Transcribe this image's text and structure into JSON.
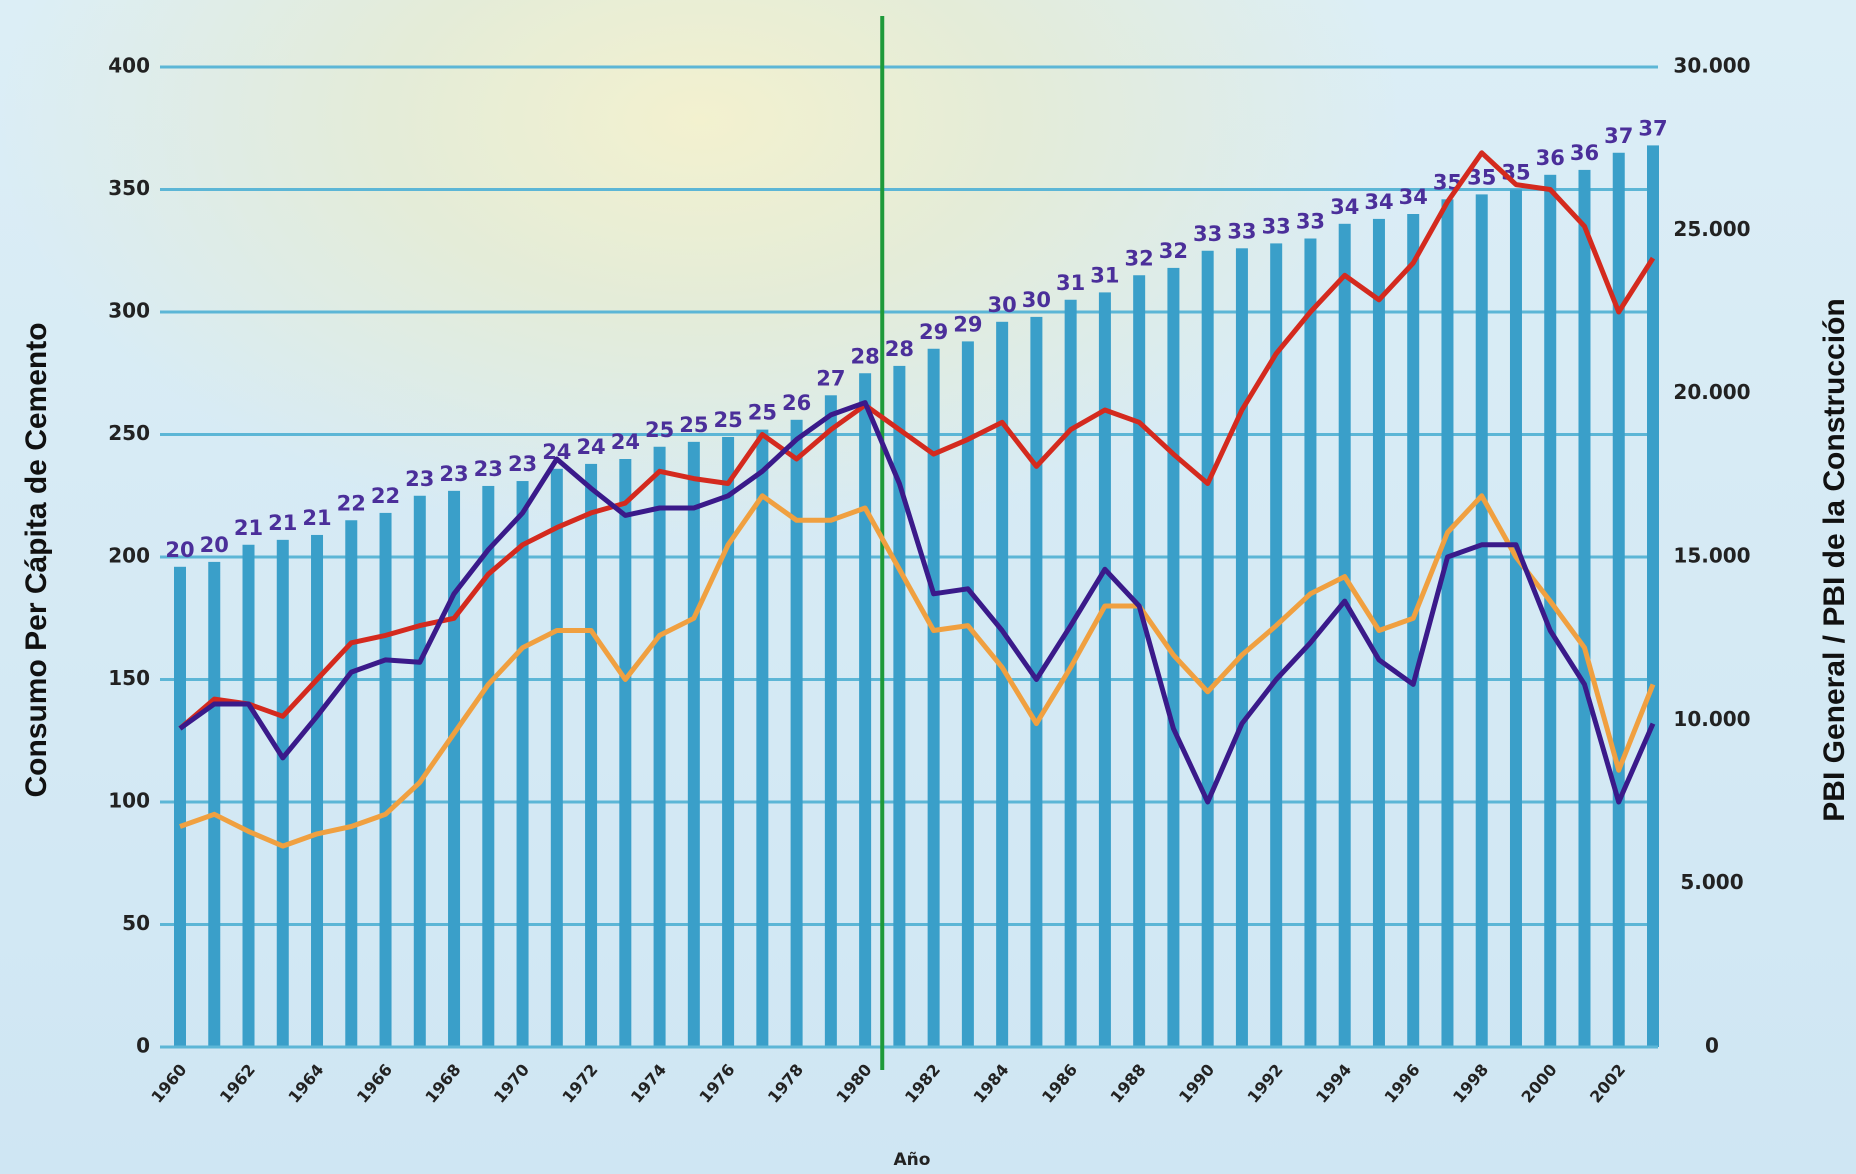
{
  "chart_data": {
    "type": "bar",
    "y_label": "Consumo Per Cápita de Cemento",
    "y2_label": "PBI General / PBI de la Construcción",
    "x_label": "Año",
    "categories": [
      "1960",
      null,
      "1962",
      null,
      "1964",
      null,
      "1966",
      null,
      "1968",
      null,
      "1970",
      null,
      "1972",
      null,
      "1974",
      null,
      "1976",
      null,
      "1978",
      null,
      "1980",
      null,
      "1982",
      null,
      "1984",
      null,
      "1986",
      null,
      "1988",
      null,
      "1990",
      null,
      "1992",
      null,
      "1994",
      null,
      "1996",
      null,
      "1998",
      null,
      "2000",
      null,
      "2002",
      null
    ],
    "series": [
      {
        "type": "bar",
        "color": "#3a9fc9",
        "label_color": "#4b2f9a",
        "values": [
          196,
          198,
          205,
          207,
          209,
          215,
          218,
          225,
          227,
          229,
          231,
          236,
          238,
          240,
          245,
          247,
          249,
          252,
          256,
          266,
          275,
          278,
          285,
          288,
          296,
          298,
          305,
          308,
          315,
          318,
          325,
          326,
          328,
          330,
          336,
          338,
          340,
          346,
          348,
          350,
          356,
          358,
          365,
          368
        ],
        "value_labels": [
          "20",
          "20",
          "21",
          "21",
          "21",
          "22",
          "22",
          "23",
          "23",
          "23",
          "23",
          "24",
          "24",
          "24",
          "25",
          "25",
          "25",
          "25",
          "26",
          "27",
          "28",
          "28",
          "29",
          "29",
          "30",
          "30",
          "31",
          "31",
          "32",
          "32",
          "33",
          "33",
          "33",
          "33",
          "34",
          "34",
          "34",
          "35",
          "35",
          "35",
          "36",
          "36",
          "37",
          "37"
        ]
      },
      {
        "type": "line",
        "color": "#f0a040",
        "axis": "y2",
        "values": [
          6750,
          7125,
          6600,
          6150,
          6525,
          6750,
          7125,
          8100,
          9600,
          11100,
          12225,
          12750,
          12750,
          11250,
          12600,
          13125,
          15375,
          16875,
          16125,
          16125,
          16500,
          14625,
          12750,
          12900,
          11625,
          9900,
          11625,
          13500,
          13500,
          12000,
          10875,
          12000,
          12900,
          13875,
          14400,
          12750,
          13125,
          15750,
          16875,
          15000,
          13650,
          12225,
          8475,
          11100
        ]
      },
      {
        "type": "line",
        "color": "#d42a1e",
        "axis": "y2",
        "values": [
          9750,
          10650,
          10500,
          10125,
          11250,
          12375,
          12600,
          12900,
          13125,
          14475,
          15375,
          15900,
          16350,
          16650,
          17625,
          17400,
          17250,
          18750,
          18000,
          18900,
          19650,
          18900,
          18150,
          18600,
          19125,
          17775,
          18900,
          19500,
          19125,
          18150,
          17250,
          19500,
          21225,
          22500,
          23625,
          22875,
          24000,
          25875,
          27375,
          26400,
          26250,
          25125,
          22500,
          24150
        ]
      },
      {
        "type": "line",
        "color": "#3a1a8a",
        "values": [
          130,
          140,
          140,
          118,
          135,
          153,
          158,
          157,
          185,
          203,
          218,
          240,
          228,
          217,
          220,
          220,
          225,
          235,
          248,
          258,
          263,
          230,
          185,
          187,
          170,
          150,
          172,
          195,
          180,
          130,
          100,
          132,
          150,
          165,
          182,
          158,
          148,
          200,
          205,
          205,
          170,
          148,
          100,
          132
        ]
      }
    ],
    "ylim": [
      0,
      400
    ],
    "yticks": [
      0,
      50,
      100,
      150,
      200,
      250,
      300,
      350,
      400
    ],
    "y2lim": [
      0,
      30000
    ],
    "y2ticks": [
      0,
      {
        "value": 5000,
        "label": "5.000"
      },
      {
        "value": 10000,
        "label": "10.000"
      },
      {
        "value": 15000,
        "label": "15.000"
      },
      {
        "value": 20000,
        "label": "20.000"
      },
      {
        "value": 25000,
        "label": "25.000"
      },
      {
        "value": 30000,
        "label": "30.000"
      }
    ],
    "grid": true
  }
}
